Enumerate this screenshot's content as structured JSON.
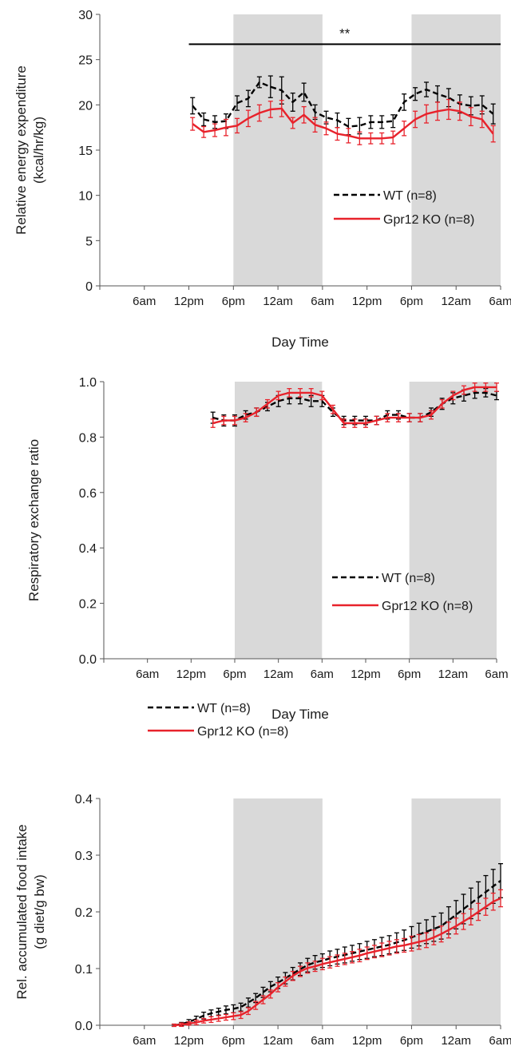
{
  "chart_data": [
    {
      "type": "line",
      "xlabel": "Day Time",
      "ylabel_lines": [
        "Relative energy expenditure",
        "(kcal/hr/kg)"
      ],
      "ylim": [
        0,
        30
      ],
      "yticks": [
        0,
        5,
        10,
        15,
        20,
        25,
        30
      ],
      "ytick_labels": [
        "0",
        "5",
        "10",
        "15",
        "20",
        "25",
        "30"
      ],
      "xrange": [
        0,
        54
      ],
      "xticks": [
        6,
        12,
        18,
        24,
        30,
        36,
        42,
        48,
        54
      ],
      "xtick_labels": [
        "6am",
        "12pm",
        "6pm",
        "12am",
        "6am",
        "12pm",
        "6pm",
        "12am",
        "6am"
      ],
      "dark_periods": [
        [
          18,
          30
        ],
        [
          42,
          54
        ]
      ],
      "legend": "center-right",
      "significance": {
        "label": "**",
        "x_start": 12,
        "x_end": 54,
        "y": 26.7
      },
      "series": [
        {
          "name": "WT (n=8)",
          "color": "#000000",
          "dashed": true,
          "x": [
            12.5,
            14,
            15.5,
            17,
            18.5,
            20,
            21.5,
            23,
            24.5,
            26,
            27.5,
            29,
            30.5,
            32,
            33.5,
            35,
            36.5,
            38,
            39.5,
            41,
            42.5,
            44,
            45.5,
            47,
            48.5,
            50,
            51.5,
            53
          ],
          "y": [
            19.9,
            18.4,
            18.1,
            18.2,
            20.2,
            20.7,
            22.5,
            22.0,
            21.6,
            20.3,
            21.4,
            19.2,
            18.6,
            18.3,
            17.6,
            17.7,
            18.1,
            18.1,
            18.2,
            20.3,
            21.2,
            21.7,
            21.2,
            20.8,
            20.1,
            19.9,
            20.0,
            19.0
          ],
          "err": [
            0.9,
            0.7,
            0.7,
            0.8,
            0.8,
            0.9,
            0.6,
            1.2,
            1.5,
            1.0,
            1.0,
            0.8,
            0.7,
            0.8,
            0.9,
            0.9,
            0.7,
            0.7,
            0.7,
            0.9,
            0.7,
            0.8,
            0.9,
            1.0,
            1.0,
            1.0,
            1.0,
            1.1
          ]
        },
        {
          "name": "Gpr12 KO (n=8)",
          "color": "#e8222b",
          "dashed": false,
          "x": [
            12.5,
            14,
            15.5,
            17,
            18.5,
            20,
            21.5,
            23,
            24.5,
            26,
            27.5,
            29,
            30.5,
            32,
            33.5,
            35,
            36.5,
            38,
            39.5,
            41,
            42.5,
            44,
            45.5,
            47,
            48.5,
            50,
            51.5,
            53
          ],
          "y": [
            17.9,
            17.0,
            17.2,
            17.5,
            17.7,
            18.5,
            19.1,
            19.5,
            19.6,
            18.0,
            18.9,
            17.8,
            17.4,
            16.8,
            16.6,
            16.3,
            16.3,
            16.3,
            16.4,
            17.4,
            18.4,
            19.0,
            19.3,
            19.5,
            19.3,
            18.7,
            18.4,
            16.8
          ],
          "err": [
            0.7,
            0.6,
            0.7,
            0.9,
            0.8,
            0.9,
            0.9,
            0.9,
            0.9,
            0.6,
            0.9,
            0.8,
            0.7,
            0.7,
            0.8,
            0.7,
            0.6,
            0.6,
            0.7,
            0.8,
            0.9,
            1.0,
            1.0,
            1.1,
            1.0,
            1.0,
            0.9,
            0.9
          ]
        }
      ]
    },
    {
      "type": "line",
      "xlabel": "Day Time",
      "ylabel_lines": [
        "Respiratory exchange ratio"
      ],
      "ylim": [
        0,
        1.0
      ],
      "yticks": [
        0,
        0.2,
        0.4,
        0.6,
        0.8,
        1.0
      ],
      "ytick_labels": [
        "0.0",
        "0.2",
        "0.4",
        "0.6",
        "0.8",
        "1.0"
      ],
      "xrange": [
        0,
        54
      ],
      "xticks": [
        6,
        12,
        18,
        24,
        30,
        36,
        42,
        48,
        54
      ],
      "xtick_labels": [
        "6am",
        "12pm",
        "6pm",
        "12am",
        "6am",
        "12pm",
        "6pm",
        "12am",
        "6am"
      ],
      "dark_periods": [
        [
          18,
          30
        ],
        [
          42,
          54
        ]
      ],
      "legend": "lower-right",
      "series": [
        {
          "name": "WT (n=8)",
          "color": "#000000",
          "dashed": true,
          "x": [
            15,
            16.5,
            18,
            19.5,
            21,
            22.5,
            24,
            25.5,
            27,
            28.5,
            30,
            31.5,
            33,
            34.5,
            36,
            37.5,
            39,
            40.5,
            42,
            43.5,
            45,
            46.5,
            48,
            49.5,
            51,
            52.5,
            54
          ],
          "y": [
            0.87,
            0.86,
            0.86,
            0.88,
            0.89,
            0.91,
            0.93,
            0.94,
            0.94,
            0.93,
            0.93,
            0.89,
            0.86,
            0.86,
            0.86,
            0.86,
            0.88,
            0.88,
            0.87,
            0.87,
            0.89,
            0.92,
            0.94,
            0.95,
            0.96,
            0.96,
            0.95
          ],
          "err": [
            0.02,
            0.02,
            0.02,
            0.015,
            0.015,
            0.015,
            0.02,
            0.02,
            0.02,
            0.02,
            0.02,
            0.015,
            0.015,
            0.015,
            0.015,
            0.015,
            0.015,
            0.015,
            0.015,
            0.015,
            0.015,
            0.02,
            0.02,
            0.02,
            0.02,
            0.015,
            0.015
          ]
        },
        {
          "name": "Gpr12 KO (n=8)",
          "color": "#e8222b",
          "dashed": false,
          "x": [
            15,
            16.5,
            18,
            19.5,
            21,
            22.5,
            24,
            25.5,
            27,
            28.5,
            30,
            31.5,
            33,
            34.5,
            36,
            37.5,
            39,
            40.5,
            42,
            43.5,
            45,
            46.5,
            48,
            49.5,
            51,
            52.5,
            54
          ],
          "y": [
            0.85,
            0.86,
            0.86,
            0.87,
            0.89,
            0.92,
            0.95,
            0.96,
            0.96,
            0.96,
            0.95,
            0.9,
            0.85,
            0.85,
            0.85,
            0.86,
            0.87,
            0.87,
            0.87,
            0.87,
            0.88,
            0.92,
            0.95,
            0.97,
            0.98,
            0.98,
            0.98
          ],
          "err": [
            0.015,
            0.015,
            0.015,
            0.015,
            0.015,
            0.015,
            0.015,
            0.015,
            0.015,
            0.015,
            0.015,
            0.015,
            0.015,
            0.015,
            0.015,
            0.015,
            0.015,
            0.015,
            0.015,
            0.015,
            0.015,
            0.015,
            0.015,
            0.015,
            0.015,
            0.015,
            0.015
          ]
        }
      ]
    },
    {
      "type": "line",
      "xlabel": "",
      "ylabel_lines": [
        "Rel. accumulated food intake",
        "(g diet/g bw)"
      ],
      "ylim": [
        0,
        0.4
      ],
      "yticks": [
        0,
        0.1,
        0.2,
        0.3,
        0.4
      ],
      "ytick_labels": [
        "0.0",
        "0.1",
        "0.2",
        "0.3",
        "0.4"
      ],
      "xrange": [
        0,
        54
      ],
      "xticks": [
        6,
        12,
        18,
        24,
        30,
        36,
        42,
        48,
        54
      ],
      "xtick_labels": [
        "6am",
        "12pm",
        "6pm",
        "12am",
        "6am",
        "12pm",
        "6pm",
        "12am",
        "6am"
      ],
      "dark_periods": [
        [
          18,
          30
        ],
        [
          42,
          54
        ]
      ],
      "legend": "upper-left",
      "series": [
        {
          "name": "WT (n=8)",
          "color": "#000000",
          "dashed": true,
          "x": [
            10,
            11,
            12,
            13,
            14,
            15,
            16,
            17,
            18,
            19,
            20,
            21,
            22,
            23,
            24,
            25,
            26,
            27,
            28,
            29,
            30,
            31,
            32,
            33,
            34,
            35,
            36,
            37,
            38,
            39,
            40,
            41,
            42,
            43,
            44,
            45,
            46,
            47,
            48,
            49,
            50,
            51,
            52,
            53,
            54
          ],
          "y": [
            0.0,
            0.002,
            0.006,
            0.011,
            0.017,
            0.021,
            0.024,
            0.027,
            0.029,
            0.032,
            0.04,
            0.048,
            0.058,
            0.068,
            0.075,
            0.083,
            0.091,
            0.099,
            0.106,
            0.111,
            0.114,
            0.118,
            0.121,
            0.124,
            0.127,
            0.13,
            0.133,
            0.136,
            0.139,
            0.142,
            0.146,
            0.15,
            0.155,
            0.16,
            0.165,
            0.17,
            0.175,
            0.185,
            0.195,
            0.205,
            0.215,
            0.225,
            0.235,
            0.245,
            0.255
          ],
          "err": [
            0.002,
            0.003,
            0.004,
            0.005,
            0.006,
            0.006,
            0.006,
            0.007,
            0.007,
            0.007,
            0.008,
            0.008,
            0.009,
            0.009,
            0.01,
            0.01,
            0.011,
            0.011,
            0.012,
            0.012,
            0.012,
            0.013,
            0.013,
            0.014,
            0.014,
            0.014,
            0.015,
            0.015,
            0.016,
            0.016,
            0.017,
            0.018,
            0.019,
            0.02,
            0.021,
            0.022,
            0.023,
            0.024,
            0.025,
            0.026,
            0.027,
            0.028,
            0.029,
            0.03,
            0.03
          ]
        },
        {
          "name": "Gpr12 KO (n=8)",
          "color": "#e8222b",
          "dashed": false,
          "x": [
            10,
            11,
            12,
            13,
            14,
            15,
            16,
            17,
            18,
            19,
            20,
            21,
            22,
            23,
            24,
            25,
            26,
            27,
            28,
            29,
            30,
            31,
            32,
            33,
            34,
            35,
            36,
            37,
            38,
            39,
            40,
            41,
            42,
            43,
            44,
            45,
            46,
            47,
            48,
            49,
            50,
            51,
            52,
            53,
            54
          ],
          "y": [
            0.0,
            0.001,
            0.003,
            0.005,
            0.008,
            0.01,
            0.012,
            0.014,
            0.016,
            0.018,
            0.025,
            0.035,
            0.045,
            0.055,
            0.067,
            0.077,
            0.087,
            0.095,
            0.101,
            0.104,
            0.108,
            0.111,
            0.114,
            0.117,
            0.12,
            0.123,
            0.127,
            0.13,
            0.133,
            0.136,
            0.139,
            0.141,
            0.144,
            0.147,
            0.15,
            0.155,
            0.161,
            0.168,
            0.175,
            0.183,
            0.191,
            0.2,
            0.209,
            0.218,
            0.224
          ],
          "err": [
            0.002,
            0.003,
            0.003,
            0.004,
            0.004,
            0.005,
            0.005,
            0.005,
            0.006,
            0.006,
            0.006,
            0.007,
            0.007,
            0.007,
            0.008,
            0.008,
            0.008,
            0.009,
            0.009,
            0.009,
            0.01,
            0.01,
            0.01,
            0.01,
            0.01,
            0.011,
            0.011,
            0.011,
            0.012,
            0.012,
            0.012,
            0.012,
            0.013,
            0.013,
            0.013,
            0.013,
            0.014,
            0.014,
            0.014,
            0.014,
            0.014,
            0.015,
            0.015,
            0.015,
            0.015
          ]
        }
      ]
    }
  ]
}
